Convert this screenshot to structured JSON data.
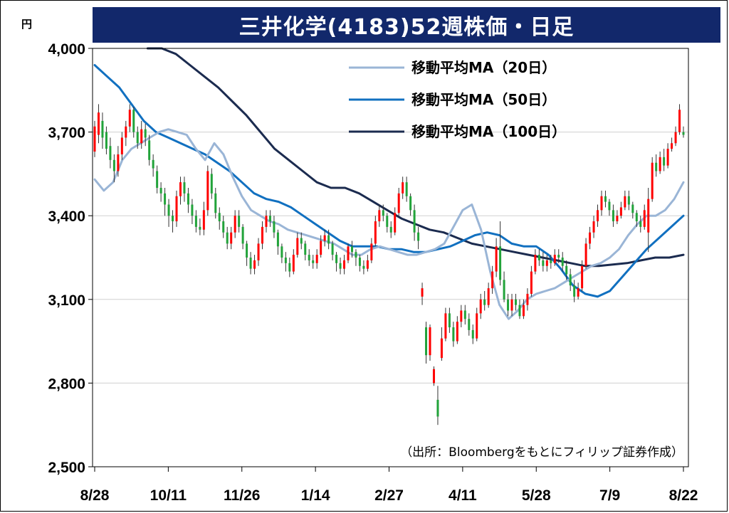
{
  "title": "三井化学(4183)52週株価・日足",
  "y_unit": "円",
  "source": "（出所：Bloombergをもとにフィリップ証券作成）",
  "colors": {
    "title_bg": "#12286b",
    "up": "#ff0000",
    "down": "#22a33a",
    "ma20": "#9ab5d6",
    "ma50": "#1170c0",
    "ma100": "#1b2b4f",
    "grid": "#d0d0d0"
  },
  "chart_data": {
    "type": "candlestick",
    "ylim": [
      2500,
      4000
    ],
    "yticks": [
      2500,
      2800,
      3100,
      3400,
      3700,
      4000
    ],
    "ytick_labels": [
      "2,500",
      "2,800",
      "3,100",
      "3,400",
      "3,700",
      "4,000"
    ],
    "xtick_labels": [
      "8/28",
      "10/11",
      "11/26",
      "1/14",
      "2/27",
      "4/11",
      "5/28",
      "7/9",
      "8/22"
    ],
    "grid": true,
    "legend_position": "top-right",
    "legend": [
      "移動平均MA（20日）",
      "移動平均MA（50日）",
      "移動平均MA（100日）"
    ],
    "ma20": [
      3530,
      3490,
      3520,
      3600,
      3640,
      3660,
      3680,
      3700,
      3710,
      3700,
      3690,
      3640,
      3600,
      3660,
      3620,
      3540,
      3470,
      3420,
      3400,
      3380,
      3370,
      3350,
      3340,
      3330,
      3320,
      3310,
      3300,
      3280,
      3260,
      3260,
      3280,
      3290,
      3280,
      3270,
      3260,
      3260,
      3270,
      3280,
      3300,
      3360,
      3420,
      3440,
      3350,
      3200,
      3080,
      3030,
      3060,
      3100,
      3120,
      3130,
      3140,
      3160,
      3180,
      3200,
      3220,
      3230,
      3250,
      3280,
      3330,
      3370,
      3400,
      3400,
      3420,
      3460,
      3520
    ],
    "ma50": [
      3940,
      3900,
      3860,
      3800,
      3740,
      3700,
      3680,
      3660,
      3640,
      3620,
      3590,
      3560,
      3520,
      3480,
      3460,
      3450,
      3430,
      3400,
      3370,
      3340,
      3310,
      3290,
      3290,
      3290,
      3280,
      3280,
      3270,
      3270,
      3280,
      3290,
      3310,
      3330,
      3340,
      3330,
      3300,
      3290,
      3290,
      3260,
      3210,
      3150,
      3120,
      3110,
      3130,
      3180,
      3230,
      3280,
      3320,
      3360,
      3400
    ],
    "ma100": [
      4040,
      4010,
      3980,
      3940,
      3900,
      3860,
      3810,
      3760,
      3700,
      3640,
      3600,
      3560,
      3520,
      3500,
      3500,
      3480,
      3450,
      3420,
      3390,
      3370,
      3350,
      3340,
      3320,
      3300,
      3290,
      3280,
      3270,
      3260,
      3250,
      3240,
      3230,
      3220,
      3220,
      3225,
      3230,
      3240,
      3250,
      3250,
      3260
    ],
    "candles": [
      [
        3630,
        3720,
        3610,
        3740
      ],
      [
        3690,
        3770,
        3660,
        3800
      ],
      [
        3740,
        3680,
        3640,
        3770
      ],
      [
        3700,
        3640,
        3620,
        3720
      ],
      [
        3650,
        3600,
        3570,
        3680
      ],
      [
        3600,
        3560,
        3520,
        3620
      ],
      [
        3560,
        3620,
        3540,
        3650
      ],
      [
        3620,
        3680,
        3600,
        3700
      ],
      [
        3680,
        3720,
        3650,
        3740
      ],
      [
        3720,
        3780,
        3700,
        3800
      ],
      [
        3780,
        3700,
        3680,
        3790
      ],
      [
        3700,
        3660,
        3640,
        3720
      ],
      [
        3660,
        3710,
        3640,
        3740
      ],
      [
        3710,
        3680,
        3650,
        3730
      ],
      [
        3670,
        3600,
        3580,
        3690
      ],
      [
        3600,
        3570,
        3540,
        3620
      ],
      [
        3560,
        3500,
        3480,
        3580
      ],
      [
        3500,
        3480,
        3450,
        3520
      ],
      [
        3480,
        3440,
        3400,
        3500
      ],
      [
        3440,
        3400,
        3360,
        3460
      ],
      [
        3400,
        3380,
        3340,
        3420
      ],
      [
        3380,
        3470,
        3360,
        3490
      ],
      [
        3470,
        3520,
        3440,
        3540
      ],
      [
        3520,
        3480,
        3450,
        3540
      ],
      [
        3480,
        3440,
        3410,
        3500
      ],
      [
        3440,
        3400,
        3370,
        3460
      ],
      [
        3400,
        3360,
        3340,
        3420
      ],
      [
        3360,
        3350,
        3330,
        3390
      ],
      [
        3350,
        3420,
        3330,
        3450
      ],
      [
        3420,
        3560,
        3400,
        3580
      ],
      [
        3550,
        3480,
        3460,
        3570
      ],
      [
        3480,
        3410,
        3390,
        3500
      ],
      [
        3410,
        3380,
        3350,
        3430
      ],
      [
        3380,
        3340,
        3320,
        3400
      ],
      [
        3340,
        3300,
        3280,
        3360
      ],
      [
        3300,
        3340,
        3280,
        3360
      ],
      [
        3340,
        3400,
        3320,
        3420
      ],
      [
        3400,
        3360,
        3340,
        3420
      ],
      [
        3360,
        3300,
        3280,
        3370
      ],
      [
        3300,
        3250,
        3220,
        3310
      ],
      [
        3250,
        3210,
        3190,
        3270
      ],
      [
        3210,
        3240,
        3190,
        3260
      ],
      [
        3240,
        3300,
        3220,
        3320
      ],
      [
        3300,
        3360,
        3280,
        3380
      ],
      [
        3360,
        3400,
        3340,
        3420
      ],
      [
        3400,
        3380,
        3360,
        3420
      ],
      [
        3380,
        3340,
        3320,
        3400
      ],
      [
        3340,
        3290,
        3260,
        3350
      ],
      [
        3290,
        3250,
        3230,
        3300
      ],
      [
        3250,
        3230,
        3200,
        3270
      ],
      [
        3230,
        3200,
        3180,
        3250
      ],
      [
        3200,
        3260,
        3190,
        3280
      ],
      [
        3260,
        3320,
        3250,
        3340
      ],
      [
        3320,
        3300,
        3280,
        3340
      ],
      [
        3300,
        3260,
        3240,
        3310
      ],
      [
        3260,
        3240,
        3220,
        3280
      ],
      [
        3240,
        3230,
        3210,
        3260
      ],
      [
        3230,
        3260,
        3210,
        3280
      ],
      [
        3260,
        3310,
        3250,
        3330
      ],
      [
        3310,
        3330,
        3290,
        3350
      ],
      [
        3330,
        3300,
        3280,
        3350
      ],
      [
        3300,
        3260,
        3240,
        3310
      ],
      [
        3260,
        3230,
        3200,
        3270
      ],
      [
        3230,
        3210,
        3190,
        3250
      ],
      [
        3210,
        3240,
        3190,
        3260
      ],
      [
        3240,
        3290,
        3230,
        3300
      ],
      [
        3290,
        3270,
        3250,
        3310
      ],
      [
        3270,
        3250,
        3220,
        3280
      ],
      [
        3250,
        3220,
        3200,
        3260
      ],
      [
        3220,
        3210,
        3190,
        3240
      ],
      [
        3210,
        3240,
        3200,
        3260
      ],
      [
        3240,
        3300,
        3230,
        3320
      ],
      [
        3300,
        3380,
        3290,
        3400
      ],
      [
        3380,
        3420,
        3360,
        3440
      ],
      [
        3420,
        3400,
        3380,
        3440
      ],
      [
        3400,
        3360,
        3340,
        3410
      ],
      [
        3360,
        3340,
        3320,
        3380
      ],
      [
        3340,
        3410,
        3330,
        3430
      ],
      [
        3410,
        3480,
        3400,
        3500
      ],
      [
        3480,
        3520,
        3460,
        3540
      ],
      [
        3520,
        3470,
        3450,
        3540
      ],
      [
        3470,
        3420,
        3400,
        3480
      ],
      [
        3420,
        3340,
        3310,
        3440
      ],
      [
        3340,
        3310,
        3280,
        3360
      ],
      [
        3110,
        3140,
        3080,
        3160
      ],
      [
        3000,
        2900,
        2870,
        3020
      ],
      [
        2900,
        3000,
        2880,
        3010
      ],
      [
        2800,
        2850,
        2790,
        2860
      ],
      [
        2740,
        2680,
        2650,
        2790
      ],
      [
        2890,
        2960,
        2880,
        3000
      ],
      [
        2960,
        3050,
        2950,
        3070
      ],
      [
        3050,
        3000,
        2980,
        3070
      ],
      [
        3000,
        2950,
        2930,
        3020
      ],
      [
        2950,
        3020,
        2940,
        3040
      ],
      [
        3020,
        3060,
        3000,
        3080
      ],
      [
        3060,
        3030,
        3010,
        3080
      ],
      [
        3030,
        2990,
        2970,
        3050
      ],
      [
        2990,
        2960,
        2940,
        3010
      ],
      [
        2960,
        3050,
        2950,
        3070
      ],
      [
        3050,
        3100,
        3030,
        3120
      ],
      [
        3100,
        3080,
        3060,
        3130
      ],
      [
        3080,
        3140,
        3070,
        3160
      ],
      [
        3140,
        3200,
        3120,
        3220
      ],
      [
        3200,
        3290,
        3180,
        3320
      ],
      [
        3290,
        3170,
        3150,
        3380
      ],
      [
        3170,
        3100,
        3090,
        3200
      ],
      [
        3100,
        3060,
        3040,
        3120
      ],
      [
        3060,
        3100,
        3040,
        3120
      ],
      [
        3100,
        3080,
        3060,
        3120
      ],
      [
        3080,
        3040,
        3030,
        3100
      ],
      [
        3040,
        3080,
        3030,
        3100
      ],
      [
        3080,
        3120,
        3060,
        3140
      ],
      [
        3120,
        3200,
        3110,
        3220
      ],
      [
        3200,
        3260,
        3190,
        3280
      ],
      [
        3260,
        3240,
        3220,
        3280
      ],
      [
        3240,
        3220,
        3200,
        3270
      ],
      [
        3220,
        3240,
        3200,
        3260
      ],
      [
        3240,
        3230,
        3210,
        3260
      ],
      [
        3230,
        3260,
        3220,
        3280
      ],
      [
        3260,
        3250,
        3230,
        3280
      ],
      [
        3250,
        3220,
        3200,
        3270
      ],
      [
        3220,
        3190,
        3170,
        3240
      ],
      [
        3190,
        3150,
        3130,
        3210
      ],
      [
        3150,
        3110,
        3090,
        3170
      ],
      [
        3110,
        3140,
        3100,
        3160
      ],
      [
        3140,
        3220,
        3130,
        3240
      ],
      [
        3220,
        3300,
        3210,
        3320
      ],
      [
        3300,
        3340,
        3280,
        3360
      ],
      [
        3340,
        3380,
        3320,
        3400
      ],
      [
        3380,
        3420,
        3360,
        3440
      ],
      [
        3420,
        3470,
        3400,
        3490
      ],
      [
        3470,
        3450,
        3430,
        3490
      ],
      [
        3450,
        3420,
        3400,
        3460
      ],
      [
        3420,
        3380,
        3360,
        3440
      ],
      [
        3380,
        3400,
        3370,
        3420
      ],
      [
        3400,
        3430,
        3390,
        3450
      ],
      [
        3430,
        3470,
        3420,
        3490
      ],
      [
        3470,
        3440,
        3420,
        3490
      ],
      [
        3440,
        3410,
        3390,
        3450
      ],
      [
        3410,
        3380,
        3360,
        3420
      ],
      [
        3380,
        3360,
        3340,
        3400
      ],
      [
        3360,
        3420,
        3350,
        3440
      ],
      [
        3340,
        3460,
        3270,
        3500
      ],
      [
        3460,
        3590,
        3450,
        3610
      ],
      [
        3590,
        3560,
        3540,
        3620
      ],
      [
        3560,
        3610,
        3550,
        3630
      ],
      [
        3610,
        3580,
        3560,
        3640
      ],
      [
        3580,
        3640,
        3570,
        3660
      ],
      [
        3640,
        3660,
        3630,
        3680
      ],
      [
        3660,
        3700,
        3650,
        3720
      ],
      [
        3700,
        3780,
        3690,
        3800
      ],
      [
        3700,
        3690,
        3680,
        3720
      ]
    ]
  }
}
